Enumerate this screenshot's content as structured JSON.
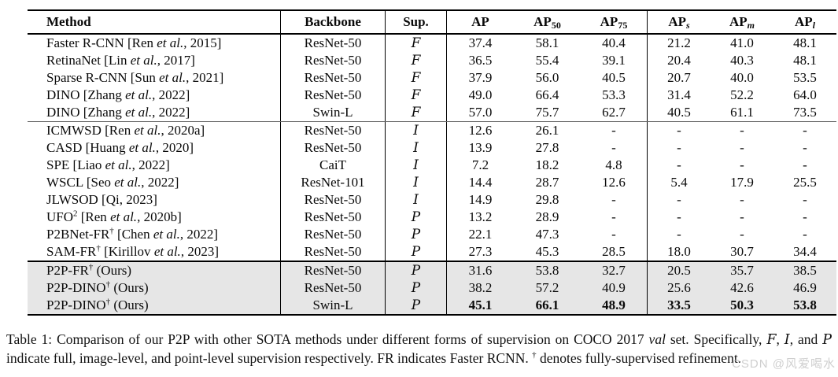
{
  "table": {
    "headers": [
      {
        "label": "Method",
        "name": "method"
      },
      {
        "label": "Backbone",
        "name": "backbone"
      },
      {
        "label": "Sup.",
        "name": "sup"
      },
      {
        "label": "AP",
        "name": "ap"
      },
      {
        "label": "AP",
        "sub": "50",
        "name": "ap50"
      },
      {
        "label": "AP",
        "sub": "75",
        "name": "ap75"
      },
      {
        "label": "AP",
        "sub": "s",
        "italic_sub": true,
        "name": "aps"
      },
      {
        "label": "AP",
        "sub": "m",
        "italic_sub": true,
        "name": "apm"
      },
      {
        "label": "AP",
        "sub": "l",
        "italic_sub": true,
        "name": "apl"
      }
    ],
    "rows": [
      {
        "method": [
          {
            "t": "Faster R-CNN [Ren "
          },
          {
            "t": "et al.",
            "style": "i"
          },
          {
            "t": ", 2015]"
          }
        ],
        "backbone": "ResNet-50",
        "sup": "F",
        "values": [
          "37.4",
          "58.1",
          "40.4",
          "21.2",
          "41.0",
          "48.1"
        ]
      },
      {
        "method": [
          {
            "t": "RetinaNet [Lin "
          },
          {
            "t": "et al.",
            "style": "i"
          },
          {
            "t": ", 2017]"
          }
        ],
        "backbone": "ResNet-50",
        "sup": "F",
        "values": [
          "36.5",
          "55.4",
          "39.1",
          "20.4",
          "40.3",
          "48.1"
        ]
      },
      {
        "method": [
          {
            "t": "Sparse R-CNN [Sun "
          },
          {
            "t": "et al.",
            "style": "i"
          },
          {
            "t": ", 2021]"
          }
        ],
        "backbone": "ResNet-50",
        "sup": "F",
        "values": [
          "37.9",
          "56.0",
          "40.5",
          "20.7",
          "40.0",
          "53.5"
        ]
      },
      {
        "method": [
          {
            "t": "DINO  [Zhang "
          },
          {
            "t": "et al.",
            "style": "i"
          },
          {
            "t": ", 2022]"
          }
        ],
        "backbone": "ResNet-50",
        "sup": "F",
        "values": [
          "49.0",
          "66.4",
          "53.3",
          "31.4",
          "52.2",
          "64.0"
        ]
      },
      {
        "method": [
          {
            "t": "DINO  [Zhang "
          },
          {
            "t": "et al.",
            "style": "i"
          },
          {
            "t": ", 2022]"
          }
        ],
        "backbone": "Swin-L",
        "sup": "F",
        "rule_after": true,
        "values": [
          "57.0",
          "75.7",
          "62.7",
          "40.5",
          "61.1",
          "73.5"
        ]
      },
      {
        "method": [
          {
            "t": "ICMWSD [Ren "
          },
          {
            "t": "et al.",
            "style": "i"
          },
          {
            "t": ", 2020a]"
          }
        ],
        "backbone": "ResNet-50",
        "sup": "I",
        "values": [
          "12.6",
          "26.1",
          "-",
          "-",
          "-",
          "-"
        ]
      },
      {
        "method": [
          {
            "t": "CASD [Huang "
          },
          {
            "t": "et al.",
            "style": "i"
          },
          {
            "t": ", 2020]"
          }
        ],
        "backbone": "ResNet-50",
        "sup": "I",
        "values": [
          "13.9",
          "27.8",
          "-",
          "-",
          "-",
          "-"
        ]
      },
      {
        "method": [
          {
            "t": "SPE [Liao "
          },
          {
            "t": "et al.",
            "style": "i"
          },
          {
            "t": ", 2022]"
          }
        ],
        "backbone": "CaiT",
        "sup": "I",
        "values": [
          "7.2",
          "18.2",
          "4.8",
          "-",
          "-",
          "-"
        ]
      },
      {
        "method": [
          {
            "t": "WSCL [Seo "
          },
          {
            "t": "et al.",
            "style": "i"
          },
          {
            "t": ", 2022]"
          }
        ],
        "backbone": "ResNet-101",
        "sup": "I",
        "values": [
          "14.4",
          "28.7",
          "12.6",
          "5.4",
          "17.9",
          "25.5"
        ]
      },
      {
        "method": [
          {
            "t": "JLWSOD [Qi, 2023]"
          }
        ],
        "backbone": "ResNet-50",
        "sup": "I",
        "values": [
          "14.9",
          "29.8",
          "-",
          "-",
          "-",
          "-"
        ]
      },
      {
        "method": [
          {
            "t": "UFO"
          },
          {
            "t": "2",
            "style": "sup"
          },
          {
            "t": " [Ren "
          },
          {
            "t": "et al.",
            "style": "i"
          },
          {
            "t": ", 2020b]"
          }
        ],
        "backbone": "ResNet-50",
        "sup": "P",
        "values": [
          "13.2",
          "28.9",
          "-",
          "-",
          "-",
          "-"
        ]
      },
      {
        "method": [
          {
            "t": "P2BNet-FR"
          },
          {
            "t": "†",
            "style": "sup"
          },
          {
            "t": " [Chen "
          },
          {
            "t": "et al.",
            "style": "i"
          },
          {
            "t": ", 2022]"
          }
        ],
        "backbone": "ResNet-50",
        "sup": "P",
        "values": [
          "22.1",
          "47.3",
          "-",
          "-",
          "-",
          "-"
        ]
      },
      {
        "method": [
          {
            "t": "SAM-FR"
          },
          {
            "t": "†",
            "style": "sup"
          },
          {
            "t": " [Kirillov "
          },
          {
            "t": "et al.",
            "style": "i"
          },
          {
            "t": ", 2023]"
          }
        ],
        "backbone": "ResNet-50",
        "sup": "P",
        "thick_after": true,
        "values": [
          "27.3",
          "45.3",
          "28.5",
          "18.0",
          "30.7",
          "34.4"
        ]
      },
      {
        "method": [
          {
            "t": "P2P-FR"
          },
          {
            "t": "†",
            "style": "sup"
          },
          {
            "t": " (Ours)"
          }
        ],
        "backbone": "ResNet-50",
        "sup": "P",
        "ours": true,
        "values": [
          "31.6",
          "53.8",
          "32.7",
          "20.5",
          "35.7",
          "38.5"
        ]
      },
      {
        "method": [
          {
            "t": "P2P-DINO"
          },
          {
            "t": "†",
            "style": "sup"
          },
          {
            "t": " (Ours)"
          }
        ],
        "backbone": "ResNet-50",
        "sup": "P",
        "ours": true,
        "values": [
          "38.2",
          "57.2",
          "40.9",
          "25.6",
          "42.6",
          "46.9"
        ]
      },
      {
        "method": [
          {
            "t": "P2P-DINO"
          },
          {
            "t": "†",
            "style": "sup"
          },
          {
            "t": " (Ours)"
          }
        ],
        "backbone": "Swin-L",
        "sup": "P",
        "ours": true,
        "bold": true,
        "values": [
          "45.1",
          "66.1",
          "48.9",
          "33.5",
          "50.3",
          "53.8"
        ]
      }
    ]
  },
  "caption": {
    "parts": [
      {
        "t": "Table 1: Comparison of our P2P with other SOTA methods under different forms of supervision on COCO 2017 "
      },
      {
        "t": "val",
        "style": "i"
      },
      {
        "t": " set. Specifically, "
      },
      {
        "t": "F",
        "style": "cal"
      },
      {
        "t": ", "
      },
      {
        "t": "I",
        "style": "cal"
      },
      {
        "t": ", and "
      },
      {
        "t": "P",
        "style": "cal"
      },
      {
        "t": " indicate full, image-level, and point-level supervision respectively. FR indicates Faster RCNN. "
      },
      {
        "t": "†",
        "style": "sup"
      },
      {
        "t": " denotes fully-supervised refinement."
      }
    ]
  },
  "watermark": "CSDN @风爱喝水",
  "colors": {
    "ours_row_bg": "#e6e6e6",
    "thick_rule": "#000000",
    "thin_rule": "#666666",
    "watermark": "#bfbfbf"
  }
}
